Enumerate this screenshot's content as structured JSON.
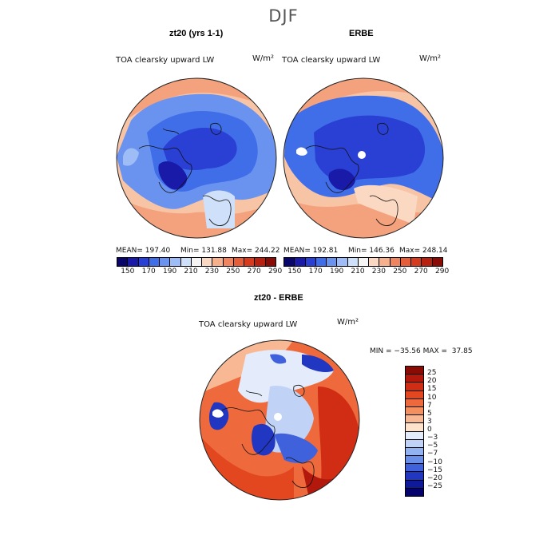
{
  "season": "DJF",
  "panels": [
    {
      "title": "zt20 (yrs 1-1)",
      "field": "TOA clearsky upward LW",
      "unit": "W/m²",
      "mean": "MEAN= 197.40",
      "min": "Min= 131.88",
      "max": "Max= 244.22"
    },
    {
      "title": "ERBE",
      "field": "TOA clearsky upward LW",
      "unit": "W/m²",
      "mean": "MEAN= 192.81",
      "min": "Min= 146.36",
      "max": "Max= 248.14"
    }
  ],
  "top_colorbar": {
    "ticks": [
      "150",
      "170",
      "190",
      "210",
      "230",
      "250",
      "270",
      "290"
    ],
    "colors": [
      "#08066b",
      "#1a1aa8",
      "#2a3fd4",
      "#3f6ee8",
      "#6a93f0",
      "#9ebcf5",
      "#cfe0fa",
      "#f5f5f5",
      "#fbd8c2",
      "#f6b08c",
      "#ef8560",
      "#e65d3a",
      "#d63b1f",
      "#b82010",
      "#8a0b05"
    ]
  },
  "diff_panel": {
    "title": "zt20 - ERBE",
    "field": "TOA clearsky upward LW",
    "unit": "W/m²",
    "minmax": "MIN = −35.56 MAX =  37.85"
  },
  "diff_colorbar": {
    "ticks": [
      "25",
      "20",
      "15",
      "10",
      "7",
      "5",
      "3",
      "0",
      "−3",
      "−5",
      "−7",
      "−10",
      "−15",
      "−20",
      "−25"
    ],
    "colors": [
      "#8a0b05",
      "#b2180b",
      "#d02d14",
      "#e3471f",
      "#ee6a3d",
      "#f4905f",
      "#f9b894",
      "#fde2cc",
      "#e4ecfb",
      "#c0d3f7",
      "#92b2f1",
      "#6a8fe9",
      "#3f62dc",
      "#2136c1",
      "#0f1a9a",
      "#04036e"
    ]
  },
  "maps": [
    {
      "name": "zt20"
    },
    {
      "name": "ERBE"
    },
    {
      "name": "diff"
    }
  ]
}
